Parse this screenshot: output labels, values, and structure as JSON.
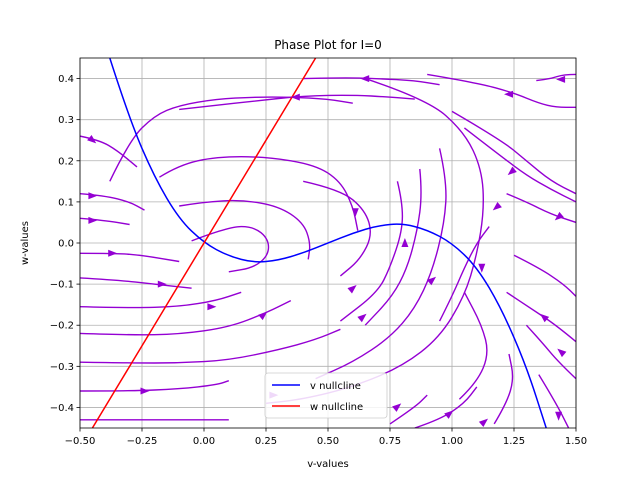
{
  "chart_data": {
    "type": "line",
    "title": "Phase Plot for I=0",
    "xlabel": "v-values",
    "ylabel": "w-values",
    "xlim": [
      -0.5,
      1.5
    ],
    "ylim": [
      -0.45,
      0.45
    ],
    "xticks": [
      -0.5,
      -0.25,
      0.0,
      0.25,
      0.5,
      0.75,
      1.0,
      1.25,
      1.5
    ],
    "xtick_labels": [
      "−0.50",
      "−0.25",
      "0.00",
      "0.25",
      "0.50",
      "0.75",
      "1.00",
      "1.25",
      "1.50"
    ],
    "yticks": [
      -0.4,
      -0.3,
      -0.2,
      -0.1,
      0.0,
      0.1,
      0.2,
      0.3,
      0.4
    ],
    "ytick_labels": [
      "−0.4",
      "−0.3",
      "−0.2",
      "−0.1",
      "0.0",
      "0.1",
      "0.2",
      "0.3",
      "0.4"
    ],
    "grid": true,
    "legend_position": "lower-center",
    "series": [
      {
        "name": "v nullcline",
        "color": "#0000ff",
        "x": [
          -0.38,
          -0.3,
          -0.2,
          -0.1,
          0.0,
          0.1,
          0.2,
          0.3,
          0.4,
          0.5,
          0.6,
          0.7,
          0.8,
          0.9,
          1.0,
          1.1,
          1.2,
          1.3,
          1.38
        ],
        "y": [
          0.45,
          0.3,
          0.16,
          0.058,
          0.0,
          -0.032,
          -0.048,
          -0.042,
          -0.024,
          0.0,
          0.024,
          0.042,
          0.048,
          0.032,
          0.0,
          -0.058,
          -0.16,
          -0.3,
          -0.45
        ]
      },
      {
        "name": "w nullcline",
        "color": "#ff0000",
        "x": [
          -0.45,
          0.45
        ],
        "y": [
          -0.45,
          0.45
        ]
      }
    ],
    "streamlines": {
      "color": "#9400d3",
      "lines": [
        {
          "x": [
            -0.5,
            -0.3,
            -0.1,
            0.0,
            0.1
          ],
          "y": [
            -0.43,
            -0.43,
            -0.43,
            -0.43,
            -0.43
          ]
        },
        {
          "x": [
            -0.5,
            -0.3,
            -0.1,
            0.05,
            0.1
          ],
          "y": [
            -0.36,
            -0.36,
            -0.355,
            -0.345,
            -0.335
          ]
        },
        {
          "x": [
            -0.5,
            -0.3,
            -0.1,
            0.1,
            0.3,
            0.45,
            0.55
          ],
          "y": [
            -0.29,
            -0.292,
            -0.292,
            -0.285,
            -0.26,
            -0.235,
            -0.21
          ]
        },
        {
          "x": [
            -0.5,
            -0.3,
            -0.1,
            0.1,
            0.25,
            0.35
          ],
          "y": [
            -0.22,
            -0.224,
            -0.222,
            -0.205,
            -0.17,
            -0.14
          ]
        },
        {
          "x": [
            -0.5,
            -0.3,
            -0.1,
            0.05,
            0.15
          ],
          "y": [
            -0.155,
            -0.158,
            -0.155,
            -0.14,
            -0.12
          ]
        },
        {
          "x": [
            -0.5,
            -0.35,
            -0.2,
            -0.05
          ],
          "y": [
            -0.085,
            -0.09,
            -0.1,
            -0.11
          ]
        },
        {
          "x": [
            -0.5,
            -0.35,
            -0.25,
            -0.1
          ],
          "y": [
            -0.025,
            -0.025,
            -0.03,
            -0.045
          ]
        },
        {
          "x": [
            -0.5,
            -0.4,
            -0.3
          ],
          "y": [
            0.06,
            0.055,
            0.045
          ]
        },
        {
          "x": [
            -0.5,
            -0.4,
            -0.3,
            -0.24
          ],
          "y": [
            0.12,
            0.115,
            0.1,
            0.08
          ]
        },
        {
          "x": [
            -0.5,
            -0.42,
            -0.35,
            -0.27
          ],
          "y": [
            0.26,
            0.25,
            0.225,
            0.185
          ]
        },
        {
          "x": [
            -0.38,
            -0.3,
            -0.2,
            -0.1,
            0.05,
            0.2,
            0.35,
            0.5,
            0.6
          ],
          "y": [
            0.15,
            0.25,
            0.31,
            0.335,
            0.35,
            0.355,
            0.355,
            0.35,
            0.34
          ]
        },
        {
          "x": [
            -0.1,
            0.05,
            0.2,
            0.4,
            0.6,
            0.75,
            0.85
          ],
          "y": [
            0.325,
            0.335,
            0.345,
            0.358,
            0.36,
            0.355,
            0.35
          ]
        },
        {
          "x": [
            0.4,
            0.55,
            0.7,
            0.85,
            0.95
          ],
          "y": [
            0.4,
            0.402,
            0.4,
            0.395,
            0.385
          ]
        },
        {
          "x": [
            -0.18,
            -0.1,
            0.05,
            0.25,
            0.45,
            0.55,
            0.6,
            0.62
          ],
          "y": [
            0.16,
            0.19,
            0.21,
            0.21,
            0.19,
            0.15,
            0.09,
            0.03
          ]
        },
        {
          "x": [
            -0.1,
            0.0,
            0.15,
            0.3,
            0.4,
            0.43,
            0.42
          ],
          "y": [
            0.09,
            0.1,
            0.105,
            0.09,
            0.05,
            0.0,
            -0.04
          ]
        },
        {
          "x": [
            -0.05,
            0.1,
            0.2,
            0.26,
            0.26,
            0.2,
            0.1
          ],
          "y": [
            0.005,
            0.04,
            0.04,
            0.01,
            -0.03,
            -0.06,
            -0.07
          ]
        },
        {
          "x": [
            0.4,
            0.55,
            0.65,
            0.68,
            0.63,
            0.55
          ],
          "y": [
            0.15,
            0.13,
            0.08,
            0.02,
            -0.04,
            -0.08
          ]
        },
        {
          "x": [
            0.78,
            0.8,
            0.8,
            0.75,
            0.7,
            0.55
          ],
          "y": [
            0.15,
            0.1,
            0.03,
            -0.06,
            -0.12,
            -0.19
          ]
        },
        {
          "x": [
            0.87,
            0.88,
            0.86,
            0.82,
            0.76,
            0.65
          ],
          "y": [
            0.18,
            0.12,
            0.03,
            -0.06,
            -0.13,
            -0.2
          ]
        },
        {
          "x": [
            0.95,
            0.98,
            0.97,
            0.92,
            0.85,
            0.75,
            0.6,
            0.45
          ],
          "y": [
            0.23,
            0.15,
            0.05,
            -0.07,
            -0.16,
            -0.23,
            -0.29,
            -0.33
          ]
        },
        {
          "x": [
            0.65,
            0.9,
            1.05,
            1.12,
            1.13,
            1.1,
            1.05,
            0.95,
            0.8,
            0.6,
            0.4,
            0.25
          ],
          "y": [
            0.4,
            0.35,
            0.27,
            0.18,
            0.08,
            -0.03,
            -0.13,
            -0.23,
            -0.3,
            -0.35,
            -0.38,
            -0.39
          ]
        },
        {
          "x": [
            0.9,
            1.1,
            1.25,
            1.35,
            1.42,
            1.5
          ],
          "y": [
            0.41,
            0.39,
            0.365,
            0.34,
            0.33,
            0.33
          ]
        },
        {
          "x": [
            1.0,
            1.2,
            1.3,
            1.4,
            1.5
          ],
          "y": [
            0.32,
            0.25,
            0.2,
            0.15,
            0.12
          ]
        },
        {
          "x": [
            1.05,
            1.2,
            1.3,
            1.4,
            1.5
          ],
          "y": [
            0.28,
            0.21,
            0.165,
            0.13,
            0.1
          ]
        },
        {
          "x": [
            1.22,
            1.3,
            1.4,
            1.5
          ],
          "y": [
            0.12,
            0.1,
            0.07,
            0.05
          ]
        },
        {
          "x": [
            1.5,
            1.42,
            1.32,
            1.22
          ],
          "y": [
            -0.24,
            -0.2,
            -0.16,
            -0.12
          ]
        },
        {
          "x": [
            1.5,
            1.43,
            1.36,
            1.3
          ],
          "y": [
            -0.33,
            -0.29,
            -0.24,
            -0.2
          ]
        },
        {
          "x": [
            1.25,
            1.35,
            1.45,
            1.5
          ],
          "y": [
            -0.03,
            -0.06,
            -0.1,
            -0.13
          ]
        },
        {
          "x": [
            1.35,
            1.42,
            1.47
          ],
          "y": [
            -0.32,
            -0.39,
            -0.45
          ]
        },
        {
          "x": [
            1.03,
            1.1,
            1.15,
            1.12,
            1.05
          ],
          "y": [
            -0.38,
            -0.34,
            -0.27,
            -0.2,
            -0.12
          ]
        },
        {
          "x": [
            0.85,
            0.95,
            1.05,
            1.1
          ],
          "y": [
            -0.45,
            -0.43,
            -0.39,
            -0.35
          ]
        },
        {
          "x": [
            0.75,
            0.85,
            0.9
          ],
          "y": [
            -0.44,
            -0.4,
            -0.37
          ]
        },
        {
          "x": [
            1.17,
            1.22,
            1.25,
            1.23
          ],
          "y": [
            -0.44,
            -0.39,
            -0.33,
            -0.27
          ]
        },
        {
          "x": [
            1.5,
            1.45,
            1.4,
            1.34
          ],
          "y": [
            0.41,
            0.41,
            0.4,
            0.395
          ]
        },
        {
          "x": [
            0.95,
            1.0,
            1.05,
            1.1,
            1.15
          ],
          "y": [
            -0.19,
            -0.13,
            -0.06,
            0.0,
            0.04
          ]
        }
      ],
      "arrows": [
        {
          "x": 0.65,
          "y": 0.4,
          "dir": "left"
        },
        {
          "x": 0.37,
          "y": 0.355,
          "dir": "left"
        },
        {
          "x": 1.23,
          "y": 0.362,
          "dir": "left"
        },
        {
          "x": 1.44,
          "y": 0.398,
          "dir": "left"
        },
        {
          "x": 1.24,
          "y": 0.173,
          "dir": "down-left"
        },
        {
          "x": 1.18,
          "y": 0.087,
          "dir": "down-left"
        },
        {
          "x": 1.43,
          "y": 0.063,
          "dir": "down-left"
        },
        {
          "x": -0.45,
          "y": 0.25,
          "dir": "down-right"
        },
        {
          "x": -0.45,
          "y": 0.115,
          "dir": "right"
        },
        {
          "x": -0.45,
          "y": 0.055,
          "dir": "right"
        },
        {
          "x": -0.37,
          "y": -0.025,
          "dir": "right"
        },
        {
          "x": -0.17,
          "y": -0.1,
          "dir": "right"
        },
        {
          "x": 0.03,
          "y": -0.155,
          "dir": "right"
        },
        {
          "x": 0.24,
          "y": -0.175,
          "dir": "up-right"
        },
        {
          "x": 0.6,
          "y": -0.11,
          "dir": "up-right"
        },
        {
          "x": 0.64,
          "y": -0.18,
          "dir": "up-right"
        },
        {
          "x": 0.81,
          "y": 0.0,
          "dir": "up"
        },
        {
          "x": 0.92,
          "y": -0.09,
          "dir": "up-right"
        },
        {
          "x": 0.61,
          "y": 0.075,
          "dir": "down"
        },
        {
          "x": 1.12,
          "y": -0.06,
          "dir": "down"
        },
        {
          "x": -0.24,
          "y": -0.36,
          "dir": "right"
        },
        {
          "x": 0.28,
          "y": -0.37,
          "dir": "right"
        },
        {
          "x": 0.78,
          "y": -0.398,
          "dir": "up-right"
        },
        {
          "x": 0.99,
          "y": -0.415,
          "dir": "up-right"
        },
        {
          "x": 1.13,
          "y": -0.435,
          "dir": "up-right"
        },
        {
          "x": 1.37,
          "y": -0.18,
          "dir": "up-left"
        },
        {
          "x": 1.44,
          "y": -0.265,
          "dir": "up-left"
        },
        {
          "x": 1.43,
          "y": -0.42,
          "dir": "down"
        }
      ]
    }
  }
}
